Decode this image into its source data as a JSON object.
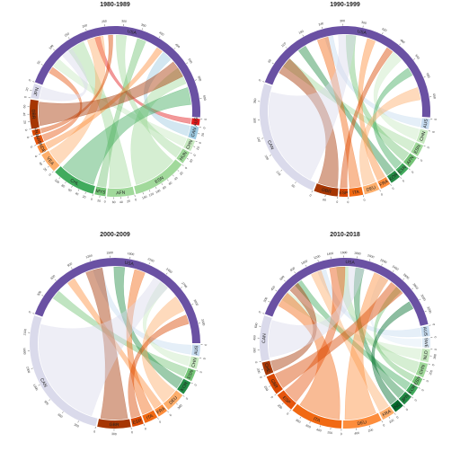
{
  "chart_data": [
    {
      "type": "chord",
      "title": "1980-1989",
      "segments": [
        {
          "label": "USA",
          "value": 660,
          "color": "#6a51a3",
          "ticks": [
            "0",
            "50",
            "100",
            "150",
            "200",
            "250",
            "300",
            "350",
            "400",
            "450",
            "500",
            "550",
            "600"
          ]
        },
        {
          "label": "AUS",
          "value": 18,
          "color": "#e31a1c",
          "ticks": [
            "0"
          ]
        },
        {
          "label": "CAN",
          "value": 35,
          "color": "#9ecae1",
          "ticks": [
            "0",
            "20"
          ]
        },
        {
          "label": "CHN",
          "value": 30,
          "color": "#c7e9c0",
          "ticks": [
            "0",
            "20"
          ]
        },
        {
          "label": "HUN",
          "value": 35,
          "color": "#a1d99b",
          "ticks": [
            "0",
            "20"
          ]
        },
        {
          "label": "ESN",
          "value": 150,
          "color": "#a1d99b",
          "ticks": [
            "0",
            "20",
            "40",
            "60",
            "80",
            "100",
            "120",
            "140"
          ]
        },
        {
          "label": "AFN",
          "value": 75,
          "color": "#a1d99b",
          "ticks": [
            "0",
            "20",
            "40",
            "60"
          ]
        },
        {
          "label": "MYS",
          "value": 30,
          "color": "#74c476",
          "ticks": [
            "0",
            "20"
          ]
        },
        {
          "label": "CHL",
          "value": 120,
          "color": "#41ab5d",
          "ticks": [
            "0",
            "20",
            "40",
            "60",
            "80",
            "100"
          ]
        },
        {
          "label": "VEA",
          "value": 55,
          "color": "#fdae6b",
          "ticks": [
            "0",
            "20",
            "40"
          ]
        },
        {
          "label": "NDE",
          "value": 22,
          "color": "#fd8d3c",
          "ticks": [
            "0"
          ]
        },
        {
          "label": "ARB",
          "value": 22,
          "color": "#e6550d",
          "ticks": [
            "0"
          ]
        },
        {
          "label": "FRA",
          "value": 15,
          "color": "#d94801",
          "ticks": [
            "0"
          ]
        },
        {
          "label": "GBR",
          "value": 80,
          "color": "#a63603",
          "ticks": [
            "0",
            "20",
            "40",
            "60"
          ]
        },
        {
          "label": "JPN",
          "value": 40,
          "color": "#dadaeb",
          "ticks": [
            "0",
            "20"
          ]
        }
      ]
    },
    {
      "type": "chord",
      "title": "1990-1999",
      "segments": [
        {
          "label": "USA",
          "value": 700,
          "color": "#6a51a3",
          "ticks": [
            "0",
            "60",
            "120",
            "180",
            "240",
            "300",
            "360",
            "420",
            "480",
            "540",
            "600",
            "660"
          ]
        },
        {
          "label": "AUS",
          "value": 30,
          "color": "#c6dbef",
          "ticks": [
            "0"
          ]
        },
        {
          "label": "CHN",
          "value": 40,
          "color": "#c7e9c0",
          "ticks": [
            "0"
          ]
        },
        {
          "label": "ESN",
          "value": 35,
          "color": "#a1d99b",
          "ticks": [
            "0"
          ]
        },
        {
          "label": "AFN",
          "value": 35,
          "color": "#74c476",
          "ticks": [
            "0"
          ]
        },
        {
          "label": "ESN",
          "value": 30,
          "color": "#41ab5d",
          "ticks": [
            "0"
          ]
        },
        {
          "label": "KOR",
          "value": 30,
          "color": "#238b45",
          "ticks": [
            "0"
          ]
        },
        {
          "label": "FRA",
          "value": 30,
          "color": "#fd8d3c",
          "ticks": [
            "0"
          ]
        },
        {
          "label": "DEU",
          "value": 45,
          "color": "#fdae6b",
          "ticks": [
            "0"
          ]
        },
        {
          "label": "ITA",
          "value": 40,
          "color": "#f16913",
          "ticks": [
            "0"
          ]
        },
        {
          "label": "ESP",
          "value": 25,
          "color": "#d94801",
          "ticks": [
            "0"
          ]
        },
        {
          "label": "GBR",
          "value": 70,
          "color": "#a63603",
          "ticks": [
            "0",
            "60"
          ]
        },
        {
          "label": "CAN",
          "value": 370,
          "color": "#dadaeb",
          "ticks": [
            "0",
            "60",
            "120",
            "180",
            "240",
            "300",
            "360"
          ]
        }
      ]
    },
    {
      "type": "chord",
      "title": "2000-2009",
      "segments": [
        {
          "label": "USA",
          "value": 3500,
          "color": "#6a51a3",
          "ticks": [
            "0",
            "300",
            "600",
            "900",
            "1200",
            "1500",
            "1800",
            "2100",
            "2400",
            "2700",
            "3000",
            "3300"
          ]
        },
        {
          "label": "AUS",
          "value": 170,
          "color": "#c6dbef",
          "ticks": [
            "0"
          ]
        },
        {
          "label": "CHN",
          "value": 170,
          "color": "#c7e9c0",
          "ticks": [
            "0"
          ]
        },
        {
          "label": "ESN",
          "value": 170,
          "color": "#74c476",
          "ticks": [
            "0"
          ]
        },
        {
          "label": "KOR",
          "value": 200,
          "color": "#238b45",
          "ticks": [
            "0"
          ]
        },
        {
          "label": "DEU",
          "value": 300,
          "color": "#fdae6b",
          "ticks": [
            "0",
            "300"
          ]
        },
        {
          "label": "FRA",
          "value": 150,
          "color": "#fd8d3c",
          "ticks": [
            "0"
          ]
        },
        {
          "label": "ITA",
          "value": 200,
          "color": "#f16913",
          "ticks": [
            "0"
          ]
        },
        {
          "label": "ESP",
          "value": 170,
          "color": "#d94801",
          "ticks": [
            "0"
          ]
        },
        {
          "label": "GBR",
          "value": 500,
          "color": "#a63603",
          "ticks": [
            "0",
            "300"
          ]
        },
        {
          "label": "CAN",
          "value": 2100,
          "color": "#dadaeb",
          "ticks": [
            "0",
            "300",
            "600",
            "900",
            "1200",
            "1500",
            "1800",
            "2100"
          ]
        }
      ]
    },
    {
      "type": "chord",
      "title": "2010-2018",
      "segments": [
        {
          "label": "USA",
          "value": 3300,
          "color": "#6a51a3",
          "ticks": [
            "0",
            "200",
            "400",
            "600",
            "800",
            "1000",
            "1200",
            "1400",
            "1600",
            "1800",
            "2000",
            "2200",
            "2400",
            "2600",
            "2800",
            "3000",
            "3200"
          ]
        },
        {
          "label": "AUS",
          "value": 160,
          "color": "#c6dbef",
          "ticks": [
            "0"
          ]
        },
        {
          "label": "SWE",
          "value": 150,
          "color": "#deebf7",
          "ticks": [
            "0"
          ]
        },
        {
          "label": "NLD",
          "value": 200,
          "color": "#c7e9c0",
          "ticks": [
            "0",
            "200"
          ]
        },
        {
          "label": "CHN",
          "value": 220,
          "color": "#a1d99b",
          "ticks": [
            "0",
            "200"
          ]
        },
        {
          "label": "ESN",
          "value": 120,
          "color": "#74c476",
          "ticks": [
            "0"
          ]
        },
        {
          "label": "KOR",
          "value": 150,
          "color": "#41ab5d",
          "ticks": [
            "0"
          ]
        },
        {
          "label": "JPN",
          "value": 160,
          "color": "#238b45",
          "ticks": [
            "0"
          ]
        },
        {
          "label": "IND",
          "value": 150,
          "color": "#006d2c",
          "ticks": [
            "0"
          ]
        },
        {
          "label": "FRA",
          "value": 200,
          "color": "#fdae6b",
          "ticks": [
            "0",
            "200"
          ]
        },
        {
          "label": "DEU",
          "value": 600,
          "color": "#fd8d3c",
          "ticks": [
            "0",
            "200",
            "400"
          ]
        },
        {
          "label": "ITA",
          "value": 800,
          "color": "#f16913",
          "ticks": [
            "0",
            "200",
            "400",
            "600",
            "800"
          ]
        },
        {
          "label": "ESP",
          "value": 300,
          "color": "#e6550d",
          "ticks": [
            "0",
            "200"
          ]
        },
        {
          "label": "GBR",
          "value": 300,
          "color": "#d94801",
          "ticks": [
            "0",
            "200"
          ]
        },
        {
          "label": "CHE",
          "value": 200,
          "color": "#a63603",
          "ticks": [
            "0",
            "200"
          ]
        },
        {
          "label": "CAN",
          "value": 700,
          "color": "#dadaeb",
          "ticks": [
            "0",
            "200",
            "400",
            "600"
          ]
        }
      ]
    }
  ]
}
